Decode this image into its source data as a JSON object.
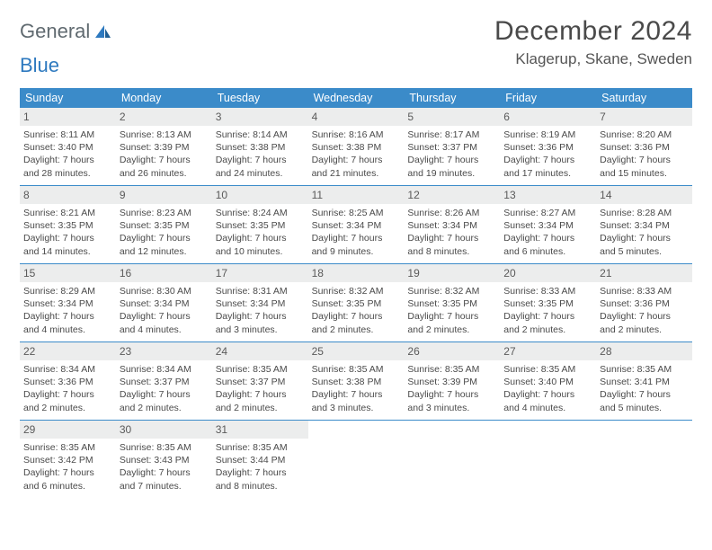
{
  "brand": {
    "word1": "General",
    "word2": "Blue"
  },
  "header": {
    "month_title": "December 2024",
    "location": "Klagerup, Skane, Sweden"
  },
  "weekdays": [
    "Sunday",
    "Monday",
    "Tuesday",
    "Wednesday",
    "Thursday",
    "Friday",
    "Saturday"
  ],
  "colors": {
    "header_bar": "#3b8bc9",
    "daynum_bg": "#eceded",
    "rule": "#3b8bc9",
    "text": "#4a4a4a"
  },
  "weeks": [
    [
      {
        "n": "1",
        "sr": "Sunrise: 8:11 AM",
        "ss": "Sunset: 3:40 PM",
        "d1": "Daylight: 7 hours",
        "d2": "and 28 minutes."
      },
      {
        "n": "2",
        "sr": "Sunrise: 8:13 AM",
        "ss": "Sunset: 3:39 PM",
        "d1": "Daylight: 7 hours",
        "d2": "and 26 minutes."
      },
      {
        "n": "3",
        "sr": "Sunrise: 8:14 AM",
        "ss": "Sunset: 3:38 PM",
        "d1": "Daylight: 7 hours",
        "d2": "and 24 minutes."
      },
      {
        "n": "4",
        "sr": "Sunrise: 8:16 AM",
        "ss": "Sunset: 3:38 PM",
        "d1": "Daylight: 7 hours",
        "d2": "and 21 minutes."
      },
      {
        "n": "5",
        "sr": "Sunrise: 8:17 AM",
        "ss": "Sunset: 3:37 PM",
        "d1": "Daylight: 7 hours",
        "d2": "and 19 minutes."
      },
      {
        "n": "6",
        "sr": "Sunrise: 8:19 AM",
        "ss": "Sunset: 3:36 PM",
        "d1": "Daylight: 7 hours",
        "d2": "and 17 minutes."
      },
      {
        "n": "7",
        "sr": "Sunrise: 8:20 AM",
        "ss": "Sunset: 3:36 PM",
        "d1": "Daylight: 7 hours",
        "d2": "and 15 minutes."
      }
    ],
    [
      {
        "n": "8",
        "sr": "Sunrise: 8:21 AM",
        "ss": "Sunset: 3:35 PM",
        "d1": "Daylight: 7 hours",
        "d2": "and 14 minutes."
      },
      {
        "n": "9",
        "sr": "Sunrise: 8:23 AM",
        "ss": "Sunset: 3:35 PM",
        "d1": "Daylight: 7 hours",
        "d2": "and 12 minutes."
      },
      {
        "n": "10",
        "sr": "Sunrise: 8:24 AM",
        "ss": "Sunset: 3:35 PM",
        "d1": "Daylight: 7 hours",
        "d2": "and 10 minutes."
      },
      {
        "n": "11",
        "sr": "Sunrise: 8:25 AM",
        "ss": "Sunset: 3:34 PM",
        "d1": "Daylight: 7 hours",
        "d2": "and 9 minutes."
      },
      {
        "n": "12",
        "sr": "Sunrise: 8:26 AM",
        "ss": "Sunset: 3:34 PM",
        "d1": "Daylight: 7 hours",
        "d2": "and 8 minutes."
      },
      {
        "n": "13",
        "sr": "Sunrise: 8:27 AM",
        "ss": "Sunset: 3:34 PM",
        "d1": "Daylight: 7 hours",
        "d2": "and 6 minutes."
      },
      {
        "n": "14",
        "sr": "Sunrise: 8:28 AM",
        "ss": "Sunset: 3:34 PM",
        "d1": "Daylight: 7 hours",
        "d2": "and 5 minutes."
      }
    ],
    [
      {
        "n": "15",
        "sr": "Sunrise: 8:29 AM",
        "ss": "Sunset: 3:34 PM",
        "d1": "Daylight: 7 hours",
        "d2": "and 4 minutes."
      },
      {
        "n": "16",
        "sr": "Sunrise: 8:30 AM",
        "ss": "Sunset: 3:34 PM",
        "d1": "Daylight: 7 hours",
        "d2": "and 4 minutes."
      },
      {
        "n": "17",
        "sr": "Sunrise: 8:31 AM",
        "ss": "Sunset: 3:34 PM",
        "d1": "Daylight: 7 hours",
        "d2": "and 3 minutes."
      },
      {
        "n": "18",
        "sr": "Sunrise: 8:32 AM",
        "ss": "Sunset: 3:35 PM",
        "d1": "Daylight: 7 hours",
        "d2": "and 2 minutes."
      },
      {
        "n": "19",
        "sr": "Sunrise: 8:32 AM",
        "ss": "Sunset: 3:35 PM",
        "d1": "Daylight: 7 hours",
        "d2": "and 2 minutes."
      },
      {
        "n": "20",
        "sr": "Sunrise: 8:33 AM",
        "ss": "Sunset: 3:35 PM",
        "d1": "Daylight: 7 hours",
        "d2": "and 2 minutes."
      },
      {
        "n": "21",
        "sr": "Sunrise: 8:33 AM",
        "ss": "Sunset: 3:36 PM",
        "d1": "Daylight: 7 hours",
        "d2": "and 2 minutes."
      }
    ],
    [
      {
        "n": "22",
        "sr": "Sunrise: 8:34 AM",
        "ss": "Sunset: 3:36 PM",
        "d1": "Daylight: 7 hours",
        "d2": "and 2 minutes."
      },
      {
        "n": "23",
        "sr": "Sunrise: 8:34 AM",
        "ss": "Sunset: 3:37 PM",
        "d1": "Daylight: 7 hours",
        "d2": "and 2 minutes."
      },
      {
        "n": "24",
        "sr": "Sunrise: 8:35 AM",
        "ss": "Sunset: 3:37 PM",
        "d1": "Daylight: 7 hours",
        "d2": "and 2 minutes."
      },
      {
        "n": "25",
        "sr": "Sunrise: 8:35 AM",
        "ss": "Sunset: 3:38 PM",
        "d1": "Daylight: 7 hours",
        "d2": "and 3 minutes."
      },
      {
        "n": "26",
        "sr": "Sunrise: 8:35 AM",
        "ss": "Sunset: 3:39 PM",
        "d1": "Daylight: 7 hours",
        "d2": "and 3 minutes."
      },
      {
        "n": "27",
        "sr": "Sunrise: 8:35 AM",
        "ss": "Sunset: 3:40 PM",
        "d1": "Daylight: 7 hours",
        "d2": "and 4 minutes."
      },
      {
        "n": "28",
        "sr": "Sunrise: 8:35 AM",
        "ss": "Sunset: 3:41 PM",
        "d1": "Daylight: 7 hours",
        "d2": "and 5 minutes."
      }
    ],
    [
      {
        "n": "29",
        "sr": "Sunrise: 8:35 AM",
        "ss": "Sunset: 3:42 PM",
        "d1": "Daylight: 7 hours",
        "d2": "and 6 minutes."
      },
      {
        "n": "30",
        "sr": "Sunrise: 8:35 AM",
        "ss": "Sunset: 3:43 PM",
        "d1": "Daylight: 7 hours",
        "d2": "and 7 minutes."
      },
      {
        "n": "31",
        "sr": "Sunrise: 8:35 AM",
        "ss": "Sunset: 3:44 PM",
        "d1": "Daylight: 7 hours",
        "d2": "and 8 minutes."
      },
      {
        "empty": true
      },
      {
        "empty": true
      },
      {
        "empty": true
      },
      {
        "empty": true
      }
    ]
  ]
}
